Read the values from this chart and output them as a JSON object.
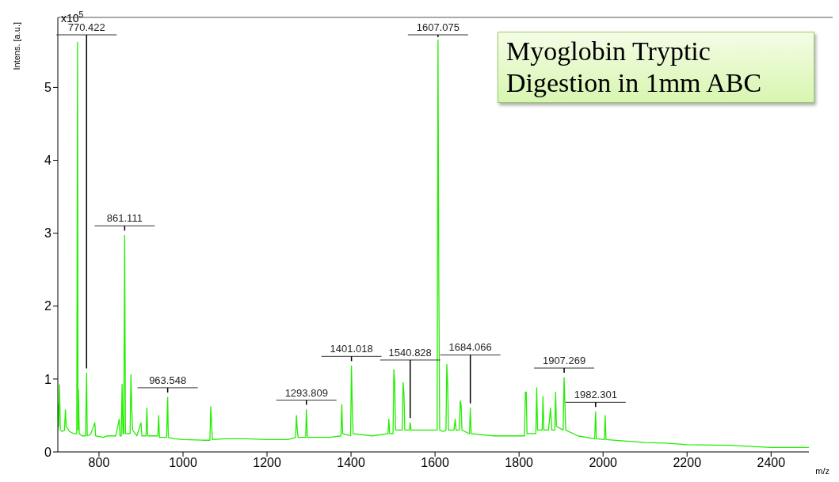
{
  "chart_data": {
    "type": "line",
    "title": "Myoglobin Tryptic Digestion in 1mm ABC",
    "xlabel": "m/z",
    "ylabel": "Intens. [a.u.]",
    "annotations": [
      "x10$^{5}$",
      {
        "text": "770.422",
        "x": 770.4,
        "y": 1.08
      },
      {
        "text": "861.111",
        "x": 861.1,
        "y": 2.97
      },
      {
        "text": "963.548",
        "x": 963.5,
        "y": 0.75
      },
      {
        "text": "1293.809",
        "x": 1293.8,
        "y": 0.58
      },
      {
        "text": "1401.018",
        "x": 1401,
        "y": 1.18
      },
      {
        "text": "1540.828",
        "x": 1540.8,
        "y": 0.4
      },
      {
        "text": "1607.075",
        "x": 1607,
        "y": 5.65
      },
      {
        "text": "1684.066",
        "x": 1684,
        "y": 0.6
      },
      {
        "text": "1907.269",
        "x": 1907.3,
        "y": 1.02
      },
      {
        "text": "1982.301",
        "x": 1982.3,
        "y": 0.55
      }
    ],
    "xlim": [
      702,
      2490
    ],
    "ylim": [
      0,
      5.96
    ],
    "xticks": [
      800,
      1000,
      1200,
      1400,
      1600,
      1800,
      2000,
      2200,
      2400
    ],
    "yticks": [
      0,
      1,
      2,
      3,
      4,
      5
    ],
    "grid": false,
    "legend": false,
    "marker": "none",
    "line_style": "solid",
    "series": [
      {
        "color": "#22ee00",
        "x": [
          702,
          703,
          704,
          706,
          708,
          712,
          718,
          720,
          722,
          730,
          740,
          747,
          749,
          750,
          751,
          753,
          760,
          768,
          770.4,
          772,
          780,
          790,
          792,
          810,
          820,
          840,
          848,
          850,
          853,
          855,
          857,
          859,
          861.1,
          863,
          874,
          876,
          878,
          880,
          890,
          900,
          902,
          912,
          914,
          916,
          940,
          942,
          944,
          961,
          963.5,
          965,
          980,
          1000,
          1050,
          1064,
          1066,
          1068,
          1070,
          1100,
          1150,
          1200,
          1250,
          1268,
          1270,
          1272,
          1274,
          1292,
          1293.8,
          1296,
          1350,
          1376,
          1378,
          1380,
          1399,
          1401,
          1403,
          1405,
          1450,
          1488,
          1490,
          1492,
          1500,
          1502,
          1504,
          1506,
          1522,
          1524,
          1526,
          1528,
          1539,
          1540.8,
          1543,
          1580,
          1600,
          1605,
          1607,
          1609,
          1611,
          1620,
          1626,
          1628,
          1630,
          1632,
          1645,
          1648,
          1650,
          1658,
          1660,
          1662,
          1664,
          1682,
          1684,
          1686,
          1740,
          1800,
          1813,
          1815,
          1817,
          1819,
          1840,
          1842,
          1844,
          1855,
          1857,
          1859,
          1870,
          1875,
          1878,
          1885,
          1887,
          1889,
          1905,
          1907.3,
          1909,
          1911,
          1940,
          1980,
          1982.3,
          1984,
          2003,
          2005,
          2007,
          2050,
          2100,
          2150,
          2200,
          2300,
          2400,
          2490
        ],
        "values": [
          0.3,
          0.65,
          0.35,
          0.92,
          0.3,
          0.28,
          0.3,
          0.58,
          0.35,
          0.28,
          0.25,
          0.25,
          5.62,
          0.3,
          0.85,
          0.25,
          0.22,
          0.22,
          1.08,
          0.22,
          0.24,
          0.4,
          0.22,
          0.2,
          0.22,
          0.22,
          0.45,
          0.22,
          0.22,
          0.93,
          0.25,
          0.25,
          2.97,
          0.25,
          0.25,
          1.06,
          0.6,
          0.3,
          0.22,
          0.4,
          0.22,
          0.22,
          0.6,
          0.22,
          0.22,
          0.5,
          0.2,
          0.2,
          0.75,
          0.2,
          0.18,
          0.17,
          0.16,
          0.16,
          0.62,
          0.4,
          0.17,
          0.18,
          0.18,
          0.17,
          0.17,
          0.2,
          0.5,
          0.3,
          0.2,
          0.2,
          0.58,
          0.2,
          0.2,
          0.22,
          0.65,
          0.25,
          0.22,
          1.18,
          0.6,
          0.25,
          0.22,
          0.25,
          0.45,
          0.25,
          0.25,
          1.13,
          0.95,
          0.3,
          0.3,
          0.95,
          0.8,
          0.3,
          0.3,
          0.4,
          0.3,
          0.3,
          0.3,
          0.3,
          5.65,
          2.33,
          0.3,
          0.28,
          0.3,
          1.2,
          0.95,
          0.3,
          0.3,
          0.45,
          0.3,
          0.3,
          0.7,
          0.65,
          0.3,
          0.25,
          0.6,
          0.25,
          0.22,
          0.22,
          0.22,
          0.82,
          0.82,
          0.25,
          0.25,
          0.88,
          0.3,
          0.3,
          0.76,
          0.3,
          0.3,
          0.6,
          0.3,
          0.3,
          0.82,
          0.35,
          0.3,
          1.02,
          0.7,
          0.3,
          0.22,
          0.18,
          0.55,
          0.18,
          0.17,
          0.5,
          0.17,
          0.15,
          0.13,
          0.12,
          0.1,
          0.09,
          0.06,
          0.06
        ]
      }
    ]
  }
}
